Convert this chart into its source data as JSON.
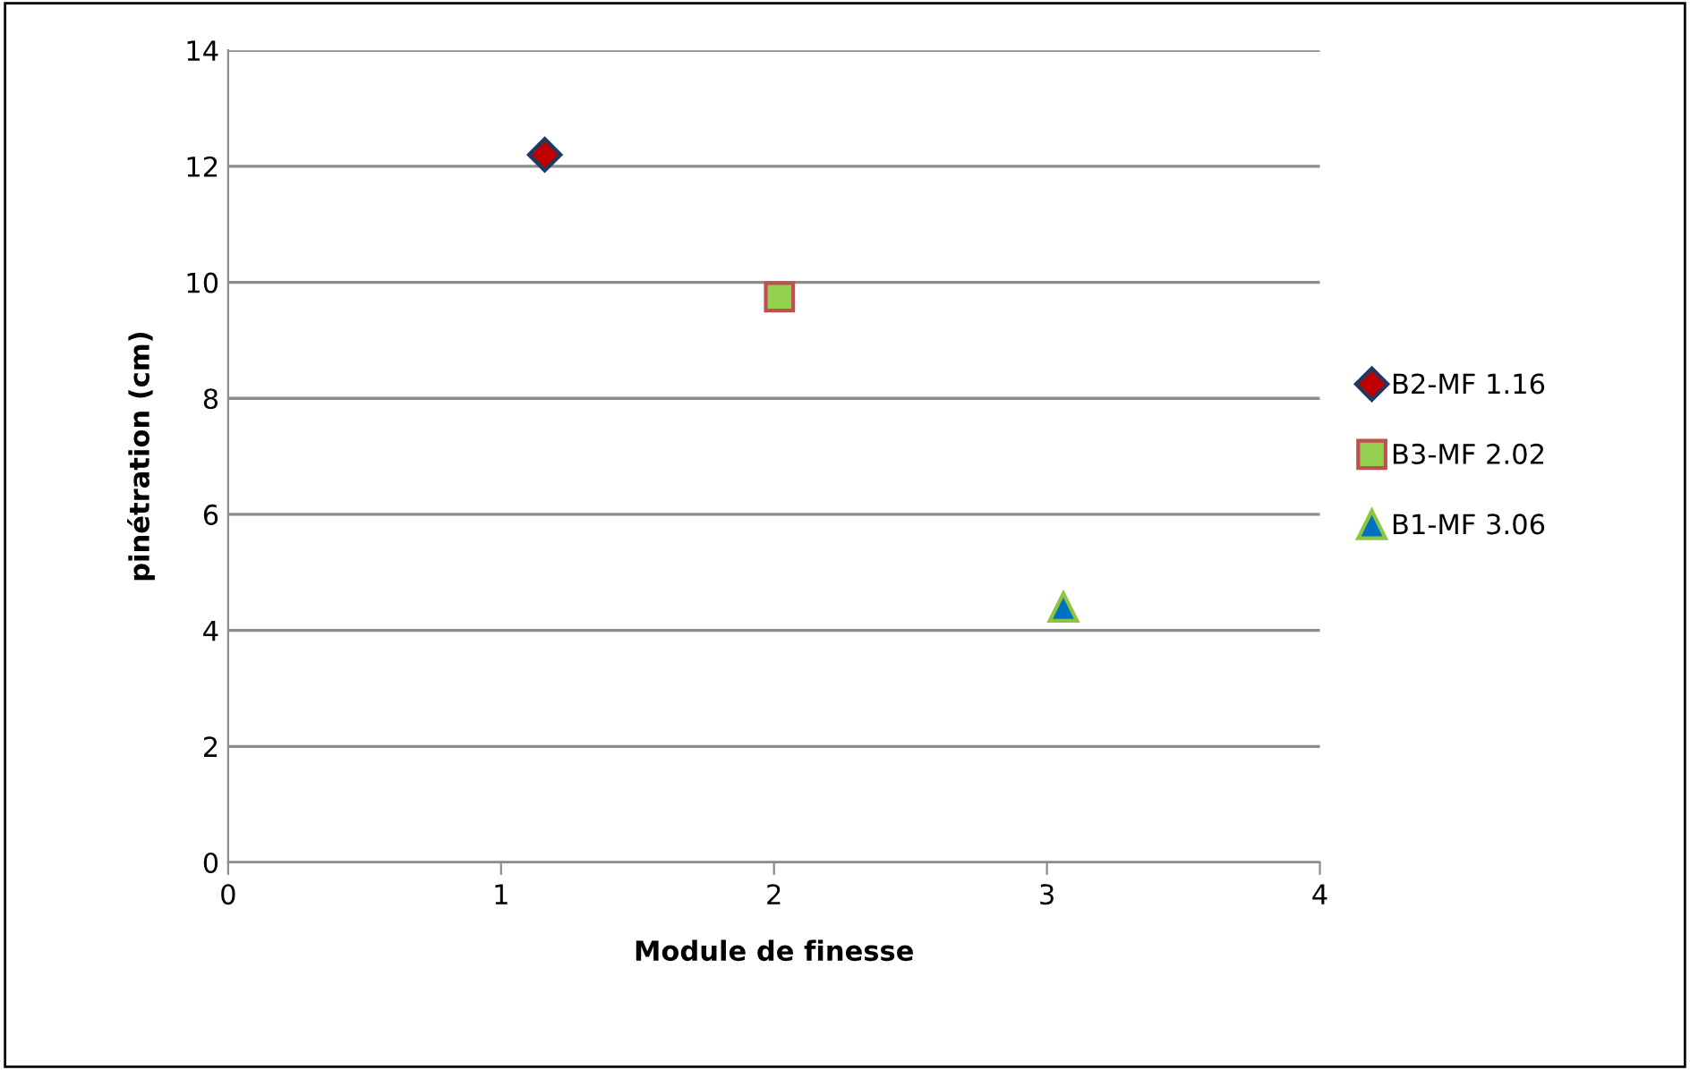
{
  "chart_data": {
    "type": "scatter",
    "xlabel": "Module de finesse",
    "ylabel": "pinétration (cm)",
    "xlim": [
      0,
      4
    ],
    "xticks": [
      0,
      1,
      2,
      3,
      4
    ],
    "ylim": [
      0,
      14
    ],
    "yticks": [
      0,
      2,
      4,
      6,
      8,
      10,
      12,
      14
    ],
    "grid": "y",
    "legend": "right",
    "series": [
      {
        "name": "B2-MF 1.16",
        "color": "#c00000",
        "marker": "diamond",
        "x": [
          1.16
        ],
        "values": [
          12.2
        ]
      },
      {
        "name": "B3-MF 2.02",
        "color": "#92d050",
        "marker": "square",
        "x": [
          2.02
        ],
        "values": [
          9.75
        ]
      },
      {
        "name": "B1-MF 3.06",
        "color": "#0070c0",
        "marker": "triangle",
        "x": [
          3.06
        ],
        "values": [
          4.4
        ]
      }
    ]
  }
}
